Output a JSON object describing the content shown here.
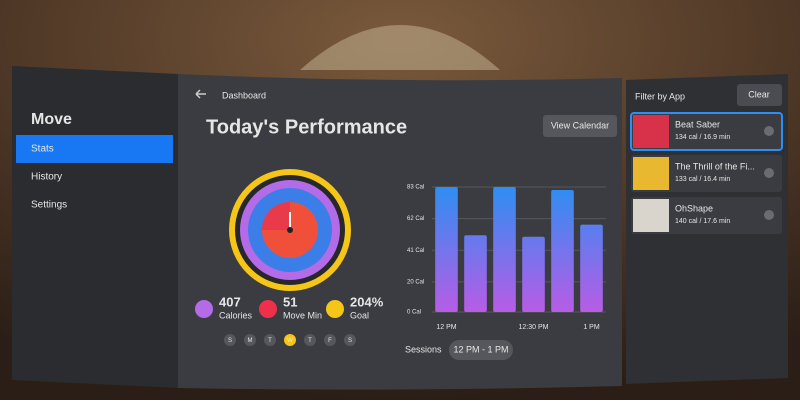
{
  "sidebar": {
    "title": "Move",
    "items": [
      "Stats",
      "History",
      "Settings"
    ],
    "active": 0
  },
  "header": {
    "breadcrumb": "Dashboard",
    "title": "Today's Performance",
    "button": "View Calendar"
  },
  "stats": [
    {
      "value": "407",
      "label": "Calories",
      "color": "#b46be8"
    },
    {
      "value": "51",
      "label": "Move Min",
      "color": "#f0304a"
    },
    {
      "value": "204%",
      "label": "Goal",
      "color": "#f5c518"
    }
  ],
  "days": [
    "S",
    "M",
    "T",
    "W",
    "T",
    "F",
    "S"
  ],
  "active_day": 3,
  "chart_data": {
    "type": "bar",
    "categories": [
      "12 PM",
      null,
      null,
      "12:30 PM",
      null,
      "1 PM"
    ],
    "values": [
      83,
      51,
      83,
      50,
      81,
      58
    ],
    "colors": [
      "#2e8ef2",
      "#b85ce6"
    ],
    "ylim": [
      0,
      83
    ],
    "yticks": [
      {
        "value": 0,
        "label": "0 Cal"
      },
      {
        "value": 20,
        "label": "20 Cal"
      },
      {
        "value": 41,
        "label": "41 Cal"
      },
      {
        "value": 62,
        "label": "62 Cal"
      },
      {
        "value": 83,
        "label": "83 Cal"
      }
    ],
    "grid": true
  },
  "sessions": {
    "label": "Sessions",
    "value": "12 PM - 1 PM"
  },
  "filter": {
    "title": "Filter by App",
    "clear": "Clear",
    "selected": 0,
    "apps": [
      {
        "name": "Beat Saber",
        "detail": "134 cal / 16.9 min",
        "color": "#d8324a"
      },
      {
        "name": "The Thrill of the Fi...",
        "detail": "133 cal / 16.4 min",
        "color": "#e8b830"
      },
      {
        "name": "OhShape",
        "detail": "140 cal / 17.6 min",
        "color": "#d9d4cc"
      }
    ]
  }
}
